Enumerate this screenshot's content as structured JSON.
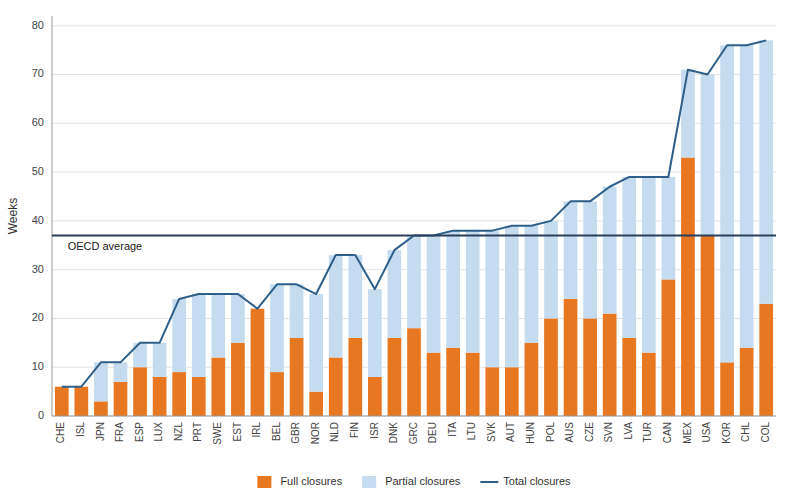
{
  "chart_data": {
    "type": "bar",
    "stacked": true,
    "y_label": "Weeks",
    "categories": [
      "CHE",
      "ISL",
      "JPN",
      "FRA",
      "ESP",
      "LUX",
      "NZL",
      "PRT",
      "SWE",
      "EST",
      "IRL",
      "BEL",
      "GBR",
      "NOR",
      "NLD",
      "FIN",
      "ISR",
      "DNK",
      "GRC",
      "DEU",
      "ITA",
      "LTU",
      "SVK",
      "AUT",
      "HUN",
      "POL",
      "AUS",
      "CZE",
      "SVN",
      "LVA",
      "TUR",
      "CAN",
      "MEX",
      "USA",
      "KOR",
      "CHL",
      "COL"
    ],
    "series": [
      {
        "name": "Full closures",
        "type": "bar",
        "color": "#E87722",
        "values": [
          6,
          6,
          3,
          7,
          10,
          8,
          9,
          8,
          12,
          15,
          22,
          9,
          16,
          5,
          12,
          16,
          8,
          16,
          18,
          13,
          14,
          13,
          10,
          10,
          15,
          20,
          24,
          20,
          21,
          16,
          13,
          28,
          53,
          37,
          11,
          14,
          23
        ]
      },
      {
        "name": "Partial closures",
        "type": "bar",
        "color": "#C5DCF0",
        "values": [
          0,
          0,
          8,
          4,
          5,
          7,
          15,
          17,
          13,
          10,
          0,
          18,
          11,
          20,
          21,
          17,
          18,
          18,
          19,
          24,
          24,
          25,
          28,
          29,
          24,
          20,
          20,
          24,
          26,
          33,
          36,
          21,
          18,
          33,
          65,
          62,
          54
        ]
      },
      {
        "name": "Total closures",
        "type": "line",
        "color": "#2D5F8A",
        "values": [
          6,
          6,
          11,
          11,
          15,
          15,
          24,
          25,
          25,
          25,
          22,
          27,
          27,
          25,
          33,
          33,
          26,
          34,
          37,
          37,
          38,
          38,
          38,
          39,
          39,
          40,
          44,
          44,
          47,
          49,
          49,
          49,
          71,
          70,
          76,
          76,
          77
        ]
      }
    ],
    "annotations": [
      {
        "label": "OECD average",
        "y": 37,
        "color": "#2B3F5C"
      }
    ],
    "ylim": [
      0,
      82
    ],
    "yticks": [
      0,
      10,
      20,
      30,
      40,
      50,
      60,
      70,
      80
    ],
    "grid": true,
    "legend": "bottom"
  }
}
